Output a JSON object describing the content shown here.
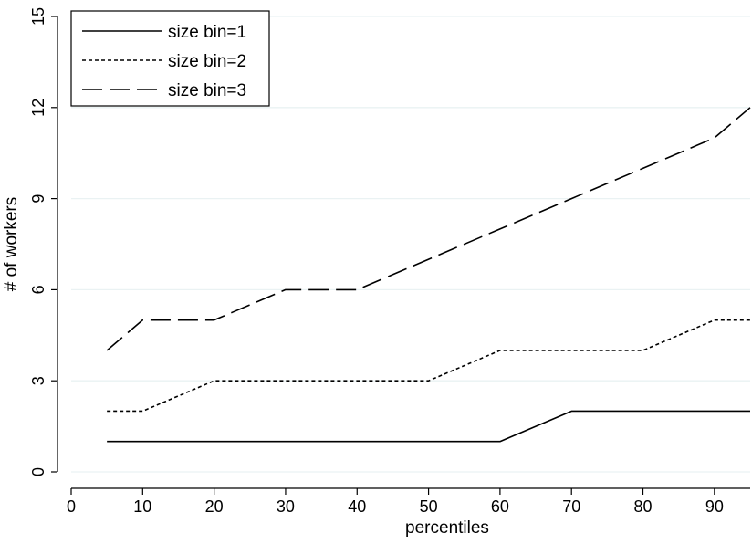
{
  "chart_data": {
    "type": "line",
    "title": "",
    "xlabel": "percentiles",
    "ylabel": "# of workers",
    "xlim": [
      0,
      95
    ],
    "ylim": [
      0,
      15
    ],
    "xticks": [
      0,
      10,
      20,
      30,
      40,
      50,
      60,
      70,
      80,
      90
    ],
    "yticks": [
      0,
      3,
      6,
      9,
      12,
      15
    ],
    "grid": "horizontal",
    "legend_position": "top-left",
    "series": [
      {
        "name": "size bin=1",
        "style": "solid",
        "x": [
          5,
          10,
          20,
          30,
          40,
          50,
          60,
          70,
          80,
          90,
          95
        ],
        "values": [
          1,
          1,
          1,
          1,
          1,
          1,
          1,
          2,
          2,
          2,
          2
        ]
      },
      {
        "name": "size bin=2",
        "style": "dotted",
        "x": [
          5,
          10,
          20,
          30,
          40,
          50,
          60,
          70,
          80,
          90,
          95
        ],
        "values": [
          2,
          2,
          3,
          3,
          3,
          3,
          4,
          4,
          4,
          5,
          5
        ]
      },
      {
        "name": "size bin=3",
        "style": "long-dash",
        "x": [
          5,
          10,
          20,
          30,
          40,
          50,
          60,
          70,
          80,
          90,
          95
        ],
        "values": [
          4,
          5,
          5,
          6,
          6,
          7,
          8,
          9,
          10,
          11,
          12
        ]
      }
    ],
    "colors": {
      "line": "#000000",
      "grid": "#eaf2f3",
      "background": "#ffffff"
    }
  }
}
